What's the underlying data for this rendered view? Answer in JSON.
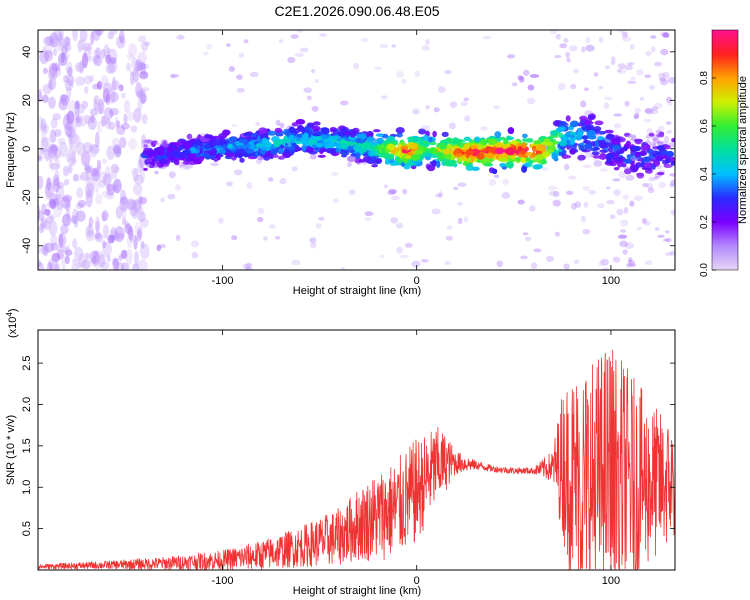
{
  "title": "C2E1.2026.090.06.48.E05",
  "colors": {
    "background": "#ffffff",
    "snr_line": "#ee3333",
    "axis": "#000000",
    "colorbar_stops": [
      "#e6d6f3",
      "#b388ff",
      "#7a00ff",
      "#2a2aff",
      "#00bfff",
      "#00e0a0",
      "#33ee33",
      "#d0f000",
      "#ffa000",
      "#ff2020",
      "#ff1090"
    ]
  },
  "chart_data": [
    {
      "type": "heatmap",
      "title": "C2E1.2026.090.06.48.E05",
      "xlabel": "Height of straight line (km)",
      "ylabel": "Frequency (Hz)",
      "xlim": [
        -195,
        133
      ],
      "ylim": [
        -50,
        49
      ],
      "x_ticks": [
        -100,
        0,
        100
      ],
      "x_tick_labels": [
        "-100",
        "0",
        "100"
      ],
      "y_ticks": [
        40,
        20,
        0,
        -20,
        -40
      ],
      "y_tick_labels": [
        "40",
        "20",
        "0",
        "-20",
        "-40"
      ],
      "colorbar": {
        "label": "Normalized spectral amplitude",
        "range": [
          0,
          1
        ],
        "ticks": [
          0.0,
          0.2,
          0.4,
          0.6,
          0.8
        ],
        "tick_labels": [
          "0.0",
          "0.2",
          "0.4",
          "0.6",
          "0.8"
        ]
      },
      "ridge": {
        "x": [
          -195,
          -180,
          -165,
          -150,
          -130,
          -110,
          -90,
          -70,
          -55,
          -40,
          -25,
          -15,
          -5,
          5,
          15,
          25,
          40,
          55,
          65,
          75,
          85,
          95,
          105,
          115,
          125,
          133
        ],
        "y": [
          2,
          1,
          -2,
          -4,
          -2,
          0,
          1,
          3,
          4,
          3,
          1,
          0,
          -1,
          0,
          -1,
          -2,
          -1,
          -1,
          -1,
          5,
          6,
          4,
          -2,
          -3,
          -4,
          -2
        ],
        "amplitude": [
          0.05,
          0.08,
          0.15,
          0.2,
          0.3,
          0.35,
          0.4,
          0.45,
          0.45,
          0.45,
          0.5,
          0.7,
          0.95,
          0.6,
          0.8,
          0.95,
          0.95,
          0.95,
          0.9,
          0.45,
          0.4,
          0.35,
          0.3,
          0.3,
          0.3,
          0.25
        ]
      }
    },
    {
      "type": "line",
      "xlabel": "Height of straight line (km)",
      "ylabel": "SNR (10 * v/v)",
      "y_scale_label": "(x10",
      "y_scale_exponent": "4",
      "y_scale_suffix": ")",
      "xlim": [
        -195,
        133
      ],
      "ylim": [
        0,
        2.9
      ],
      "x_ticks": [
        -100,
        0,
        100
      ],
      "x_tick_labels": [
        "-100",
        "0",
        "100"
      ],
      "y_ticks": [
        0.5,
        1.0,
        1.5,
        2.0,
        2.5
      ],
      "y_tick_labels": [
        "0.5",
        "1.0",
        "1.5",
        "2.0",
        "2.5"
      ],
      "envelope": {
        "x": [
          -195,
          -160,
          -130,
          -100,
          -80,
          -60,
          -40,
          -30,
          -20,
          -10,
          0,
          5,
          10,
          15,
          20,
          30,
          40,
          50,
          60,
          70,
          75,
          80,
          90,
          100,
          110,
          120,
          133
        ],
        "center": [
          0.04,
          0.06,
          0.08,
          0.12,
          0.18,
          0.28,
          0.4,
          0.55,
          0.65,
          0.75,
          0.95,
          1.1,
          1.25,
          1.3,
          1.3,
          1.27,
          1.22,
          1.2,
          1.2,
          1.25,
          1.3,
          1.1,
          1.05,
          1.2,
          1.1,
          1.05,
          1.05
        ],
        "spread": [
          0.03,
          0.05,
          0.08,
          0.12,
          0.18,
          0.25,
          0.35,
          0.45,
          0.55,
          0.6,
          0.65,
          0.55,
          0.5,
          0.35,
          0.15,
          0.06,
          0.04,
          0.04,
          0.04,
          0.2,
          0.9,
          1.3,
          1.5,
          1.6,
          1.3,
          1.0,
          0.7
        ]
      }
    }
  ]
}
